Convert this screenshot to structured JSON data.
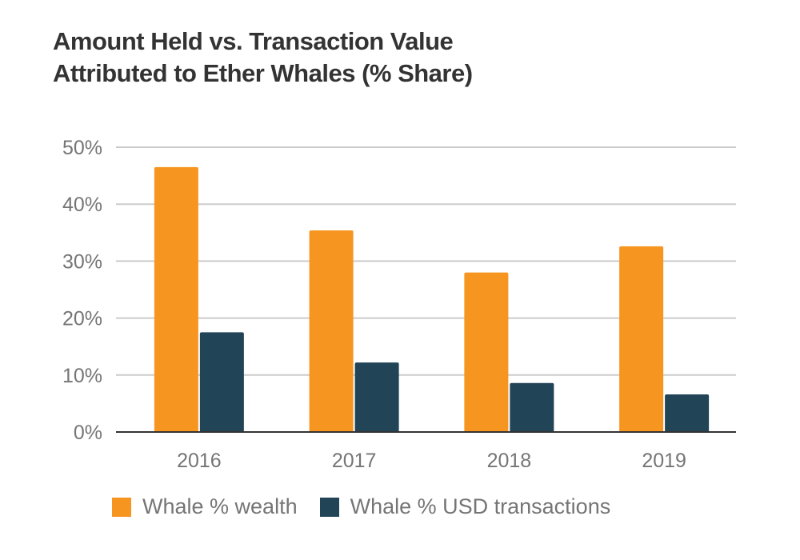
{
  "chart_data": {
    "type": "bar",
    "title": "Amount Held vs. Transaction Value Attributed to Ether Whales (% Share)",
    "title_lines": [
      "Amount Held vs. Transaction Value",
      "Attributed to Ether Whales (% Share)"
    ],
    "categories": [
      "2016",
      "2017",
      "2018",
      "2019"
    ],
    "series": [
      {
        "name": "Whale % wealth",
        "color": "#F79521",
        "values": [
          46.5,
          35.4,
          28.0,
          32.6
        ]
      },
      {
        "name": "Whale % USD transactions",
        "color": "#214457",
        "values": [
          17.5,
          12.2,
          8.6,
          6.6
        ]
      }
    ],
    "ylim": [
      0,
      50
    ],
    "yticks": [
      0,
      10,
      20,
      30,
      40,
      50
    ],
    "ytick_labels": [
      "0%",
      "10%",
      "20%",
      "30%",
      "40%",
      "50%"
    ],
    "xlabel": "",
    "ylabel": "",
    "grid": true,
    "legend": "bottom"
  }
}
